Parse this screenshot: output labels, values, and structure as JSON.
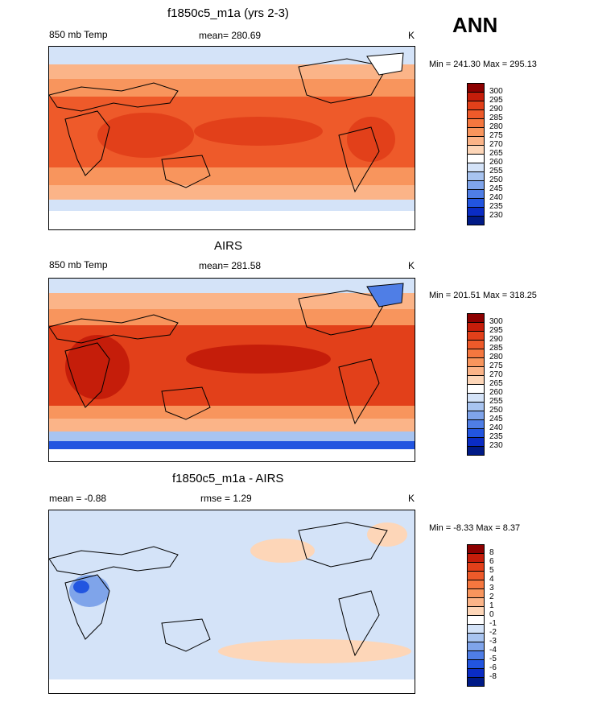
{
  "season": "ANN",
  "panels": [
    {
      "title": "f1850c5_m1a (yrs 2-3)",
      "left_label": "850 mb Temp",
      "center_label": "mean= 280.69",
      "units": "K",
      "minmax": "Min = 241.30 Max = 295.13",
      "colorbar_labels": [
        "300",
        "295",
        "290",
        "285",
        "280",
        "275",
        "270",
        "265",
        "260",
        "255",
        "250",
        "245",
        "240",
        "235",
        "230"
      ],
      "colorbar_colors": [
        "#8c0000",
        "#c51d0a",
        "#e2401a",
        "#ee5a2a",
        "#f5773f",
        "#f8955d",
        "#fbb488",
        "#fdd6b8",
        "#ffffff",
        "#d4e3f8",
        "#a8c4f0",
        "#7fa4ea",
        "#4f7ee6",
        "#2255e0",
        "#0a2cc4",
        "#001a86"
      ],
      "chart_data": {
        "type": "heatmap",
        "title": "f1850c5_m1a (yrs 2-3)",
        "variable": "850 mb Temp",
        "units": "K",
        "mean": 280.69,
        "min": 241.3,
        "max": 295.13,
        "levels": [
          230,
          235,
          240,
          245,
          250,
          255,
          260,
          265,
          270,
          275,
          280,
          285,
          290,
          295,
          300
        ]
      }
    },
    {
      "title": "AIRS",
      "left_label": "850 mb Temp",
      "center_label": "mean= 281.58",
      "units": "K",
      "minmax": "Min = 201.51 Max = 318.25",
      "colorbar_labels": [
        "300",
        "295",
        "290",
        "285",
        "280",
        "275",
        "270",
        "265",
        "260",
        "255",
        "250",
        "245",
        "240",
        "235",
        "230"
      ],
      "colorbar_colors": [
        "#8c0000",
        "#c51d0a",
        "#e2401a",
        "#ee5a2a",
        "#f5773f",
        "#f8955d",
        "#fbb488",
        "#fdd6b8",
        "#ffffff",
        "#d4e3f8",
        "#a8c4f0",
        "#7fa4ea",
        "#4f7ee6",
        "#2255e0",
        "#0a2cc4",
        "#001a86"
      ],
      "chart_data": {
        "type": "heatmap",
        "title": "AIRS",
        "variable": "850 mb Temp",
        "units": "K",
        "mean": 281.58,
        "min": 201.51,
        "max": 318.25,
        "levels": [
          230,
          235,
          240,
          245,
          250,
          255,
          260,
          265,
          270,
          275,
          280,
          285,
          290,
          295,
          300
        ]
      }
    },
    {
      "title": "f1850c5_m1a - AIRS",
      "left_label": "mean =  -0.88",
      "center_label": "rmse =   1.29",
      "units": "K",
      "minmax": "Min =  -8.33 Max =   8.37",
      "colorbar_labels": [
        "8",
        "6",
        "5",
        "4",
        "3",
        "2",
        "1",
        "0",
        "-1",
        "-2",
        "-3",
        "-4",
        "-5",
        "-6",
        "-8"
      ],
      "colorbar_colors": [
        "#8c0000",
        "#c51d0a",
        "#e2401a",
        "#ee5a2a",
        "#f5773f",
        "#f8955d",
        "#fbb488",
        "#fdd6b8",
        "#ffffff",
        "#d4e3f8",
        "#a8c4f0",
        "#7fa4ea",
        "#4f7ee6",
        "#2255e0",
        "#0a2cc4",
        "#001a86"
      ],
      "chart_data": {
        "type": "heatmap",
        "title": "f1850c5_m1a - AIRS",
        "mean": -0.88,
        "rmse": 1.29,
        "units": "K",
        "min": -8.33,
        "max": 8.37,
        "levels": [
          -8,
          -6,
          -5,
          -4,
          -3,
          -2,
          -1,
          0,
          1,
          2,
          3,
          4,
          5,
          6,
          8
        ]
      }
    }
  ]
}
